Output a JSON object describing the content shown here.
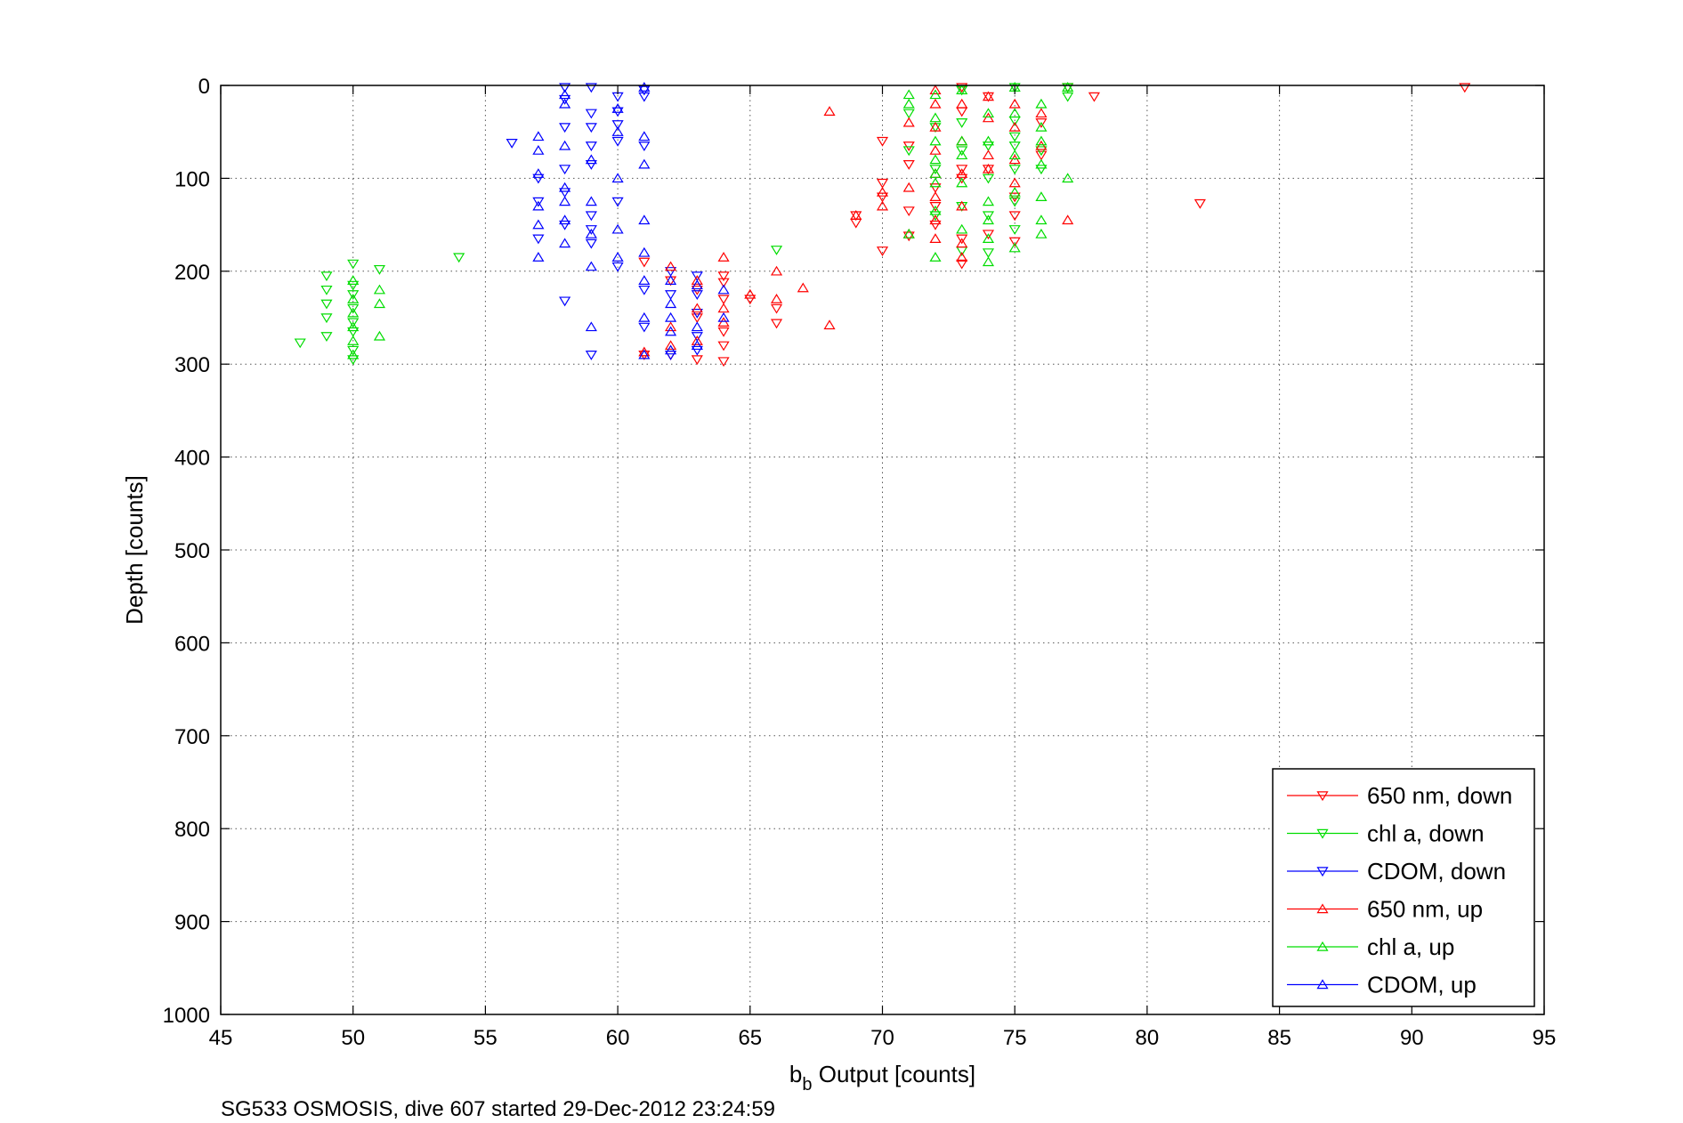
{
  "footer": "SG533 OSMOSIS, dive 607 started 29-Dec-2012 23:24:59",
  "chart_data": {
    "type": "scatter",
    "title": "",
    "xlabel_main": "b",
    "xlabel_sub": "b",
    "xlabel_rest": " Output [counts]",
    "ylabel": "Depth [counts]",
    "xlim": [
      45,
      95
    ],
    "ylim": [
      0,
      1000
    ],
    "y_reversed": true,
    "x_ticks": [
      45,
      50,
      55,
      60,
      65,
      70,
      75,
      80,
      85,
      90,
      95
    ],
    "y_ticks": [
      0,
      100,
      200,
      300,
      400,
      500,
      600,
      700,
      800,
      900,
      1000
    ],
    "grid": true,
    "legend_position": "bottom-right",
    "series": [
      {
        "name": "650 nm, down",
        "color": "#ff0000",
        "marker": "triangle-down",
        "points": [
          [
            92,
            2
          ],
          [
            78,
            12
          ],
          [
            77,
            2
          ],
          [
            73,
            2
          ],
          [
            73,
            28
          ],
          [
            74,
            12
          ],
          [
            76,
            40
          ],
          [
            76,
            75
          ],
          [
            73,
            90
          ],
          [
            73,
            100
          ],
          [
            74,
            90
          ],
          [
            75,
            120
          ],
          [
            75,
            140
          ],
          [
            75,
            168
          ],
          [
            74,
            160
          ],
          [
            73,
            165
          ],
          [
            73,
            192
          ],
          [
            72,
            110
          ],
          [
            72,
            130
          ],
          [
            72,
            150
          ],
          [
            71,
            65
          ],
          [
            71,
            85
          ],
          [
            71,
            135
          ],
          [
            71,
            162
          ],
          [
            70,
            60
          ],
          [
            70,
            105
          ],
          [
            70,
            120
          ],
          [
            70,
            178
          ],
          [
            69,
            140
          ],
          [
            69,
            148
          ],
          [
            82,
            127
          ],
          [
            64,
            205
          ],
          [
            64,
            212
          ],
          [
            64,
            230
          ],
          [
            64,
            265
          ],
          [
            64,
            280
          ],
          [
            64,
            297
          ],
          [
            63,
            220
          ],
          [
            63,
            250
          ],
          [
            63,
            295
          ],
          [
            62,
            290
          ],
          [
            62,
            210
          ],
          [
            61,
            190
          ],
          [
            61,
            290
          ],
          [
            66,
            240
          ],
          [
            66,
            256
          ],
          [
            65,
            230
          ]
        ]
      },
      {
        "name": "chl a, down",
        "color": "#00dd00",
        "marker": "triangle-down",
        "points": [
          [
            77,
            12
          ],
          [
            77,
            2
          ],
          [
            76,
            70
          ],
          [
            76,
            90
          ],
          [
            75,
            2
          ],
          [
            75,
            38
          ],
          [
            75,
            55
          ],
          [
            75,
            65
          ],
          [
            75,
            90
          ],
          [
            75,
            125
          ],
          [
            75,
            155
          ],
          [
            74,
            65
          ],
          [
            74,
            100
          ],
          [
            74,
            140
          ],
          [
            74,
            180
          ],
          [
            73,
            5
          ],
          [
            73,
            40
          ],
          [
            73,
            70
          ],
          [
            73,
            130
          ],
          [
            73,
            178
          ],
          [
            72,
            45
          ],
          [
            72,
            90
          ],
          [
            72,
            140
          ],
          [
            71,
            30
          ],
          [
            71,
            70
          ],
          [
            66,
            177
          ],
          [
            54,
            185
          ],
          [
            51,
            198
          ],
          [
            50,
            192
          ],
          [
            50,
            215
          ],
          [
            50,
            225
          ],
          [
            50,
            240
          ],
          [
            50,
            255
          ],
          [
            50,
            265
          ],
          [
            50,
            285
          ],
          [
            50,
            295
          ],
          [
            49,
            205
          ],
          [
            49,
            220
          ],
          [
            49,
            235
          ],
          [
            49,
            250
          ],
          [
            49,
            270
          ],
          [
            48,
            277
          ]
        ]
      },
      {
        "name": "CDOM, down",
        "color": "#0000ff",
        "marker": "triangle-down",
        "points": [
          [
            61,
            5
          ],
          [
            61,
            12
          ],
          [
            61,
            65
          ],
          [
            60,
            12
          ],
          [
            60,
            28
          ],
          [
            60,
            42
          ],
          [
            60,
            60
          ],
          [
            60,
            125
          ],
          [
            60,
            195
          ],
          [
            59,
            2
          ],
          [
            59,
            30
          ],
          [
            59,
            45
          ],
          [
            59,
            65
          ],
          [
            59,
            85
          ],
          [
            59,
            140
          ],
          [
            59,
            155
          ],
          [
            59,
            170
          ],
          [
            59,
            290
          ],
          [
            58,
            2
          ],
          [
            58,
            15
          ],
          [
            58,
            45
          ],
          [
            58,
            90
          ],
          [
            58,
            115
          ],
          [
            58,
            150
          ],
          [
            58,
            232
          ],
          [
            57,
            100
          ],
          [
            57,
            125
          ],
          [
            57,
            165
          ],
          [
            56,
            62
          ],
          [
            61,
            220
          ],
          [
            61,
            260
          ],
          [
            62,
            200
          ],
          [
            62,
            225
          ],
          [
            62,
            290
          ],
          [
            63,
            205
          ],
          [
            63,
            225
          ],
          [
            63,
            245
          ],
          [
            63,
            270
          ],
          [
            63,
            285
          ]
        ]
      },
      {
        "name": "650 nm, up",
        "color": "#ff0000",
        "marker": "triangle-up",
        "points": [
          [
            77,
            145
          ],
          [
            76,
            30
          ],
          [
            76,
            65
          ],
          [
            75,
            20
          ],
          [
            75,
            45
          ],
          [
            75,
            80
          ],
          [
            75,
            105
          ],
          [
            74,
            12
          ],
          [
            74,
            35
          ],
          [
            74,
            75
          ],
          [
            74,
            90
          ],
          [
            73,
            20
          ],
          [
            73,
            60
          ],
          [
            73,
            95
          ],
          [
            73,
            130
          ],
          [
            73,
            170
          ],
          [
            73,
            185
          ],
          [
            72,
            5
          ],
          [
            72,
            20
          ],
          [
            72,
            45
          ],
          [
            72,
            70
          ],
          [
            72,
            95
          ],
          [
            72,
            120
          ],
          [
            72,
            145
          ],
          [
            72,
            165
          ],
          [
            71,
            40
          ],
          [
            71,
            110
          ],
          [
            71,
            160
          ],
          [
            70,
            115
          ],
          [
            70,
            130
          ],
          [
            69,
            140
          ],
          [
            68,
            28
          ],
          [
            68,
            258
          ],
          [
            67,
            218
          ],
          [
            66,
            200
          ],
          [
            66,
            230
          ],
          [
            65,
            225
          ],
          [
            64,
            185
          ],
          [
            64,
            240
          ],
          [
            64,
            255
          ],
          [
            63,
            210
          ],
          [
            63,
            240
          ],
          [
            63,
            275
          ],
          [
            62,
            195
          ],
          [
            62,
            260
          ],
          [
            62,
            280
          ],
          [
            61,
            287
          ]
        ]
      },
      {
        "name": "chl a, up",
        "color": "#00dd00",
        "marker": "triangle-up",
        "points": [
          [
            77,
            2
          ],
          [
            77,
            100
          ],
          [
            76,
            20
          ],
          [
            76,
            45
          ],
          [
            76,
            60
          ],
          [
            76,
            85
          ],
          [
            76,
            120
          ],
          [
            76,
            145
          ],
          [
            76,
            160
          ],
          [
            75,
            2
          ],
          [
            75,
            30
          ],
          [
            75,
            75
          ],
          [
            75,
            115
          ],
          [
            75,
            175
          ],
          [
            74,
            30
          ],
          [
            74,
            60
          ],
          [
            74,
            125
          ],
          [
            74,
            145
          ],
          [
            74,
            165
          ],
          [
            74,
            190
          ],
          [
            73,
            5
          ],
          [
            73,
            60
          ],
          [
            73,
            75
          ],
          [
            73,
            105
          ],
          [
            73,
            155
          ],
          [
            72,
            10
          ],
          [
            72,
            35
          ],
          [
            72,
            60
          ],
          [
            72,
            80
          ],
          [
            72,
            95
          ],
          [
            72,
            105
          ],
          [
            72,
            135
          ],
          [
            72,
            185
          ],
          [
            71,
            10
          ],
          [
            71,
            20
          ],
          [
            71,
            160
          ],
          [
            51,
            220
          ],
          [
            51,
            235
          ],
          [
            51,
            270
          ],
          [
            50,
            210
          ],
          [
            50,
            230
          ],
          [
            50,
            245
          ],
          [
            50,
            260
          ],
          [
            50,
            275
          ],
          [
            50,
            290
          ]
        ]
      },
      {
        "name": "CDOM, up",
        "color": "#0000ff",
        "marker": "triangle-up",
        "points": [
          [
            61,
            2
          ],
          [
            61,
            55
          ],
          [
            61,
            85
          ],
          [
            61,
            145
          ],
          [
            61,
            180
          ],
          [
            61,
            210
          ],
          [
            61,
            250
          ],
          [
            61,
            290
          ],
          [
            60,
            25
          ],
          [
            60,
            50
          ],
          [
            60,
            100
          ],
          [
            60,
            155
          ],
          [
            60,
            185
          ],
          [
            59,
            80
          ],
          [
            59,
            125
          ],
          [
            59,
            160
          ],
          [
            59,
            195
          ],
          [
            59,
            260
          ],
          [
            58,
            10
          ],
          [
            58,
            20
          ],
          [
            58,
            65
          ],
          [
            58,
            110
          ],
          [
            58,
            125
          ],
          [
            58,
            145
          ],
          [
            58,
            170
          ],
          [
            57,
            55
          ],
          [
            57,
            70
          ],
          [
            57,
            95
          ],
          [
            57,
            130
          ],
          [
            57,
            150
          ],
          [
            57,
            185
          ],
          [
            62,
            210
          ],
          [
            62,
            235
          ],
          [
            62,
            250
          ],
          [
            62,
            265
          ],
          [
            62,
            285
          ],
          [
            63,
            215
          ],
          [
            63,
            260
          ],
          [
            63,
            280
          ],
          [
            64,
            220
          ],
          [
            64,
            250
          ]
        ]
      }
    ]
  }
}
